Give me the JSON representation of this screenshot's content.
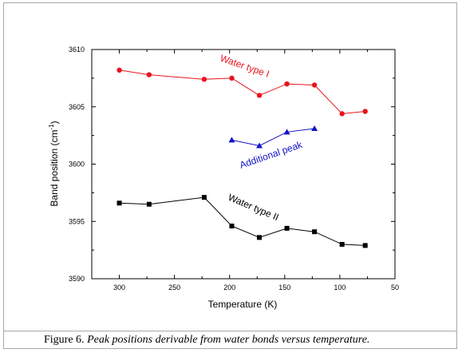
{
  "caption": {
    "label": "Figure 6.",
    "text": "Peak positions derivable from water bonds versus temperature."
  },
  "chart_data": {
    "type": "line",
    "xlabel": "Temperature (K)",
    "ylabel_main": "Band position (cm",
    "ylabel_sup": "-1",
    "ylabel_end": ")",
    "xlim": [
      325,
      50
    ],
    "ylim": [
      3590,
      3610
    ],
    "x_ticks": [
      300,
      250,
      200,
      150,
      100,
      50
    ],
    "y_ticks": [
      3590,
      3595,
      3600,
      3605,
      3610
    ],
    "grid": false,
    "series": [
      {
        "name": "Water type I",
        "color": "#e8141e",
        "marker": "circle",
        "x": [
          300,
          273,
          223,
          198,
          173,
          148,
          123,
          98,
          77
        ],
        "y": [
          3608.2,
          3607.8,
          3607.4,
          3607.5,
          3606.0,
          3607.0,
          3606.9,
          3604.4,
          3604.6
        ]
      },
      {
        "name": "Additional peak",
        "color": "#1212c8",
        "marker": "triangle",
        "x": [
          198,
          173,
          148,
          123
        ],
        "y": [
          3602.1,
          3601.6,
          3602.8,
          3603.1
        ]
      },
      {
        "name": "Water type II",
        "color": "#000000",
        "marker": "square",
        "x": [
          300,
          273,
          223,
          198,
          173,
          148,
          123,
          98,
          77
        ],
        "y": [
          3596.6,
          3596.5,
          3597.1,
          3594.6,
          3593.6,
          3594.4,
          3594.1,
          3593.0,
          3592.9
        ]
      }
    ]
  }
}
